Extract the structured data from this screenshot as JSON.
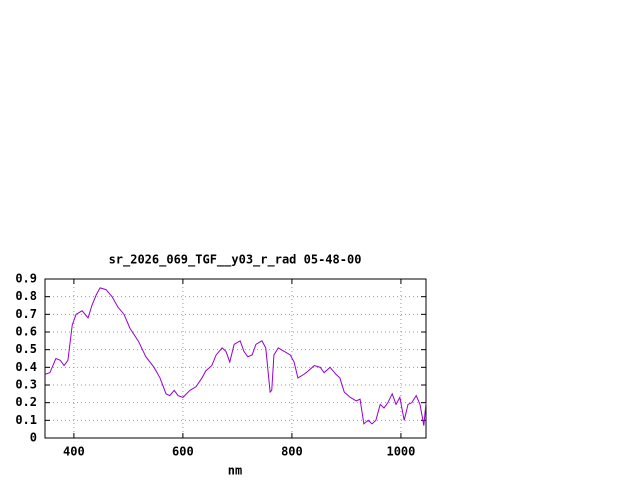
{
  "chart_data": {
    "type": "line",
    "title": "sr_2026_069_TGF__y03_r_rad 05-48-00",
    "x_label": "nm",
    "x": [
      347,
      356,
      367,
      375,
      382,
      389,
      397,
      404,
      415,
      426,
      433,
      441,
      448,
      459,
      470,
      481,
      492,
      503,
      518,
      532,
      547,
      558,
      569,
      576,
      584,
      591,
      600,
      613,
      624,
      635,
      642,
      653,
      661,
      672,
      679,
      686,
      694,
      705,
      712,
      719,
      727,
      734,
      745,
      752,
      760,
      763,
      767,
      775,
      786,
      797,
      804,
      811,
      822,
      830,
      841,
      852,
      859,
      870,
      881,
      888,
      896,
      907,
      918,
      925,
      932,
      940,
      947,
      954,
      962,
      969,
      976,
      984,
      991,
      998,
      1006,
      1013,
      1020,
      1028,
      1035,
      1042,
      1046
    ],
    "series": [
      {
        "color": "#9400d3",
        "values": [
          0.36,
          0.37,
          0.45,
          0.44,
          0.41,
          0.44,
          0.64,
          0.7,
          0.72,
          0.68,
          0.75,
          0.81,
          0.85,
          0.84,
          0.8,
          0.74,
          0.7,
          0.62,
          0.55,
          0.46,
          0.4,
          0.34,
          0.25,
          0.24,
          0.27,
          0.24,
          0.23,
          0.27,
          0.29,
          0.34,
          0.38,
          0.41,
          0.47,
          0.51,
          0.49,
          0.43,
          0.53,
          0.55,
          0.49,
          0.46,
          0.47,
          0.53,
          0.55,
          0.51,
          0.26,
          0.27,
          0.47,
          0.51,
          0.49,
          0.47,
          0.43,
          0.34,
          0.36,
          0.38,
          0.41,
          0.4,
          0.37,
          0.4,
          0.36,
          0.34,
          0.26,
          0.23,
          0.21,
          0.22,
          0.08,
          0.1,
          0.08,
          0.1,
          0.19,
          0.17,
          0.2,
          0.25,
          0.19,
          0.23,
          0.1,
          0.19,
          0.2,
          0.24,
          0.19,
          0.07,
          0.2
        ]
      }
    ],
    "xlim": [
      347,
      1046
    ],
    "xticks": [
      400,
      600,
      800,
      1000
    ],
    "ylim": [
      0,
      0.9
    ],
    "yticks": [
      0,
      0.1,
      0.2,
      0.3,
      0.4,
      0.5,
      0.6,
      0.7,
      0.8,
      0.9
    ],
    "grid": true
  }
}
